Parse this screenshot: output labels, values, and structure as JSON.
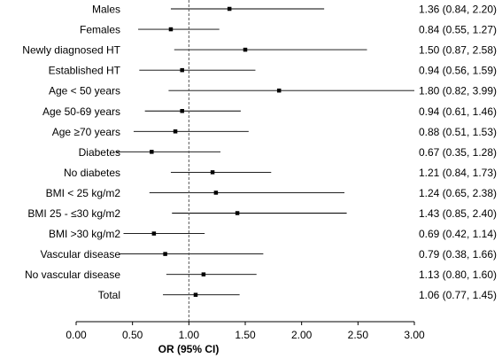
{
  "chart_data": {
    "type": "forest",
    "xlabel": "OR (95% CI)",
    "xlim": [
      0,
      3
    ],
    "xticks": [
      "0.00",
      "0.50",
      "1.00",
      "1.50",
      "2.00",
      "2.50",
      "3.00"
    ],
    "reference_line": 1.0,
    "rows": [
      {
        "label": "Males",
        "or": 1.36,
        "lo": 0.84,
        "hi": 2.2,
        "ci_text": "1.36 (0.84, 2.20)"
      },
      {
        "label": "Females",
        "or": 0.84,
        "lo": 0.55,
        "hi": 1.27,
        "ci_text": "0.84 (0.55, 1.27)"
      },
      {
        "label": "Newly diagnosed HT",
        "or": 1.5,
        "lo": 0.87,
        "hi": 2.58,
        "ci_text": "1.50 (0.87, 2.58)"
      },
      {
        "label": "Established HT",
        "or": 0.94,
        "lo": 0.56,
        "hi": 1.59,
        "ci_text": "0.94 (0.56, 1.59)"
      },
      {
        "label": "Age < 50 years",
        "or": 1.8,
        "lo": 0.82,
        "hi": 3.99,
        "ci_text": "1.80 (0.82, 3.99)"
      },
      {
        "label": "Age 50-69 years",
        "or": 0.94,
        "lo": 0.61,
        "hi": 1.46,
        "ci_text": "0.94 (0.61, 1.46)"
      },
      {
        "label": "Age  ≥70 years",
        "or": 0.88,
        "lo": 0.51,
        "hi": 1.53,
        "ci_text": "0.88 (0.51, 1.53)"
      },
      {
        "label": "Diabetes",
        "or": 0.67,
        "lo": 0.35,
        "hi": 1.28,
        "ci_text": "0.67 (0.35, 1.28)"
      },
      {
        "label": "No diabetes",
        "or": 1.21,
        "lo": 0.84,
        "hi": 1.73,
        "ci_text": "1.21 (0.84, 1.73)"
      },
      {
        "label": "BMI < 25 kg/m2",
        "or": 1.24,
        "lo": 0.65,
        "hi": 2.38,
        "ci_text": "1.24 (0.65, 2.38)"
      },
      {
        "label": "BMI 25 - ≤30 kg/m2",
        "or": 1.43,
        "lo": 0.85,
        "hi": 2.4,
        "ci_text": "1.43 (0.85, 2.40)"
      },
      {
        "label": "BMI >30 kg/m2",
        "or": 0.69,
        "lo": 0.42,
        "hi": 1.14,
        "ci_text": "0.69 (0.42, 1.14)"
      },
      {
        "label": "Vascular disease",
        "or": 0.79,
        "lo": 0.38,
        "hi": 1.66,
        "ci_text": "0.79 (0.38, 1.66)"
      },
      {
        "label": "No vascular disease",
        "or": 1.13,
        "lo": 0.8,
        "hi": 1.6,
        "ci_text": "1.13 (0.80, 1.60)"
      },
      {
        "label": "Total",
        "or": 1.06,
        "lo": 0.77,
        "hi": 1.45,
        "ci_text": "1.06 (0.77, 1.45)"
      }
    ],
    "colors": {
      "marker": "#000000",
      "ci_line": "#000000",
      "reference_line": "#555555",
      "axis": "#000000",
      "text": "#000000"
    },
    "grid": false,
    "legend": "none"
  }
}
